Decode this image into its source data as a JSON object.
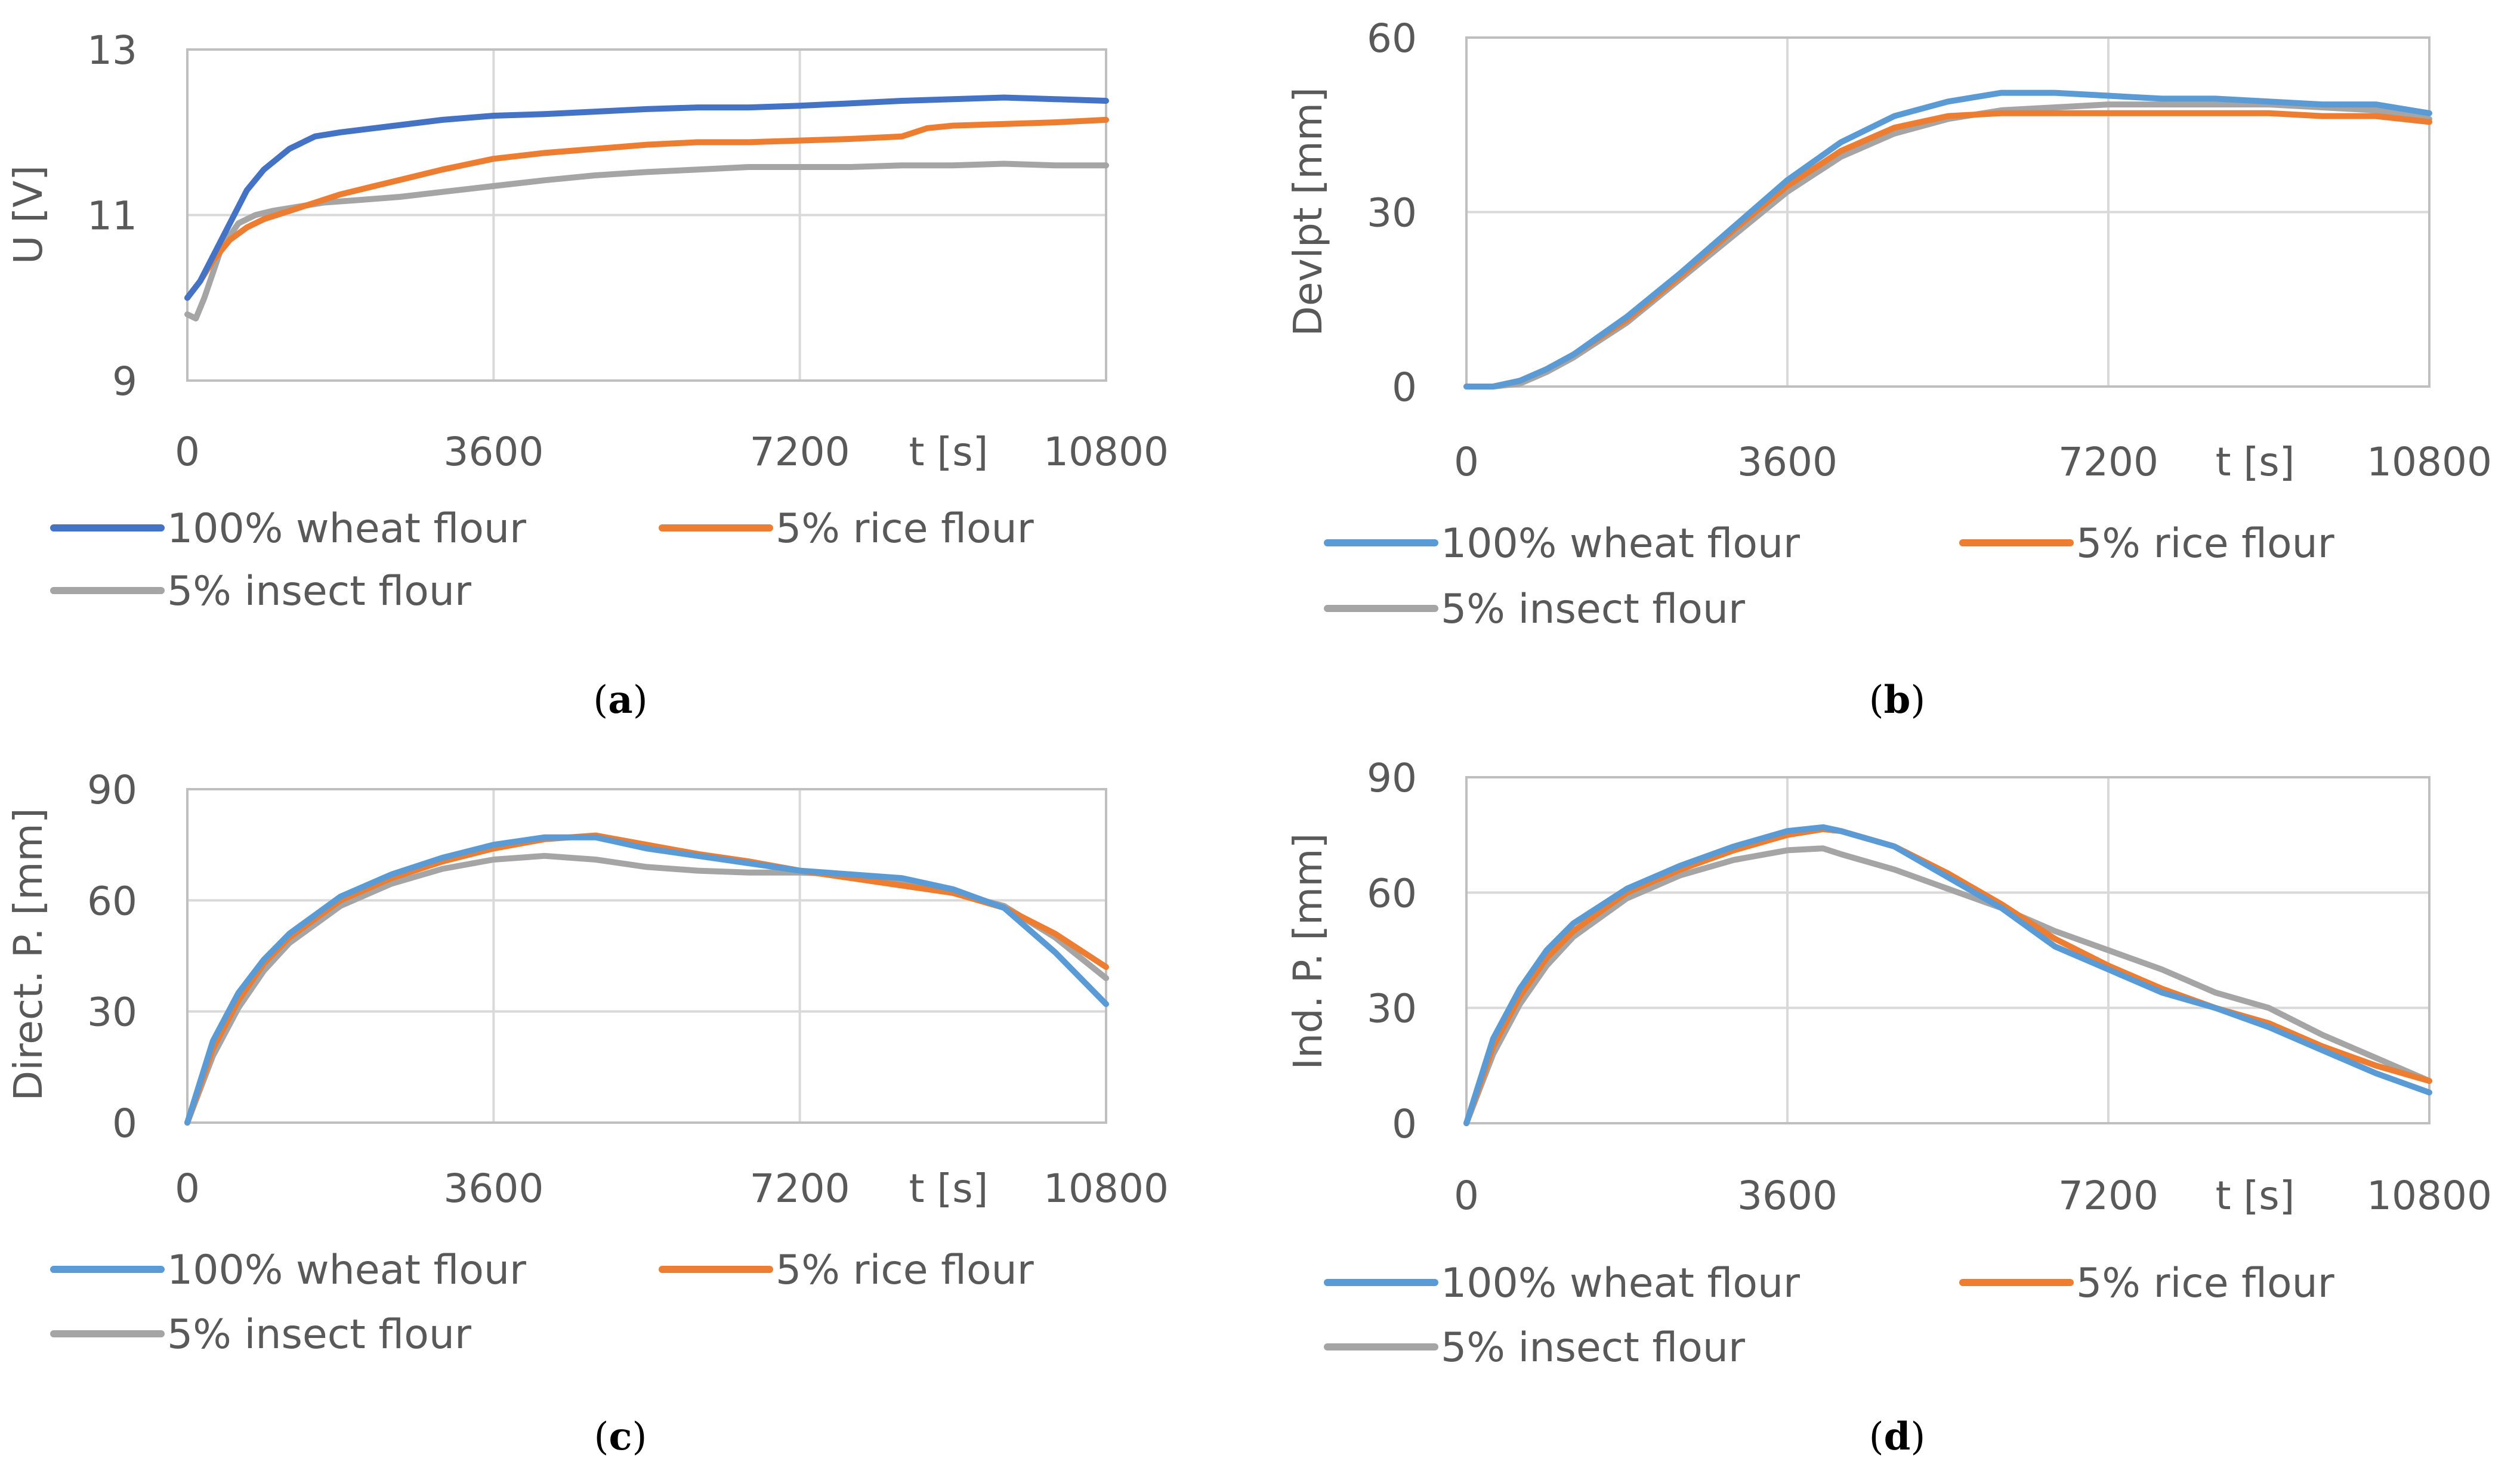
{
  "chart_data": [
    {
      "panel": "a",
      "type": "line",
      "panel_label": "a",
      "ylabel": "U [V]",
      "xlabel": "t [s]",
      "xlim": [
        0,
        10800
      ],
      "ylim": [
        9,
        13
      ],
      "x_ticks": [
        0,
        3600,
        7200,
        10800
      ],
      "y_ticks": [
        9,
        11,
        13
      ],
      "x_tick_labels": [
        "0",
        "3600",
        "7200",
        "10800"
      ],
      "y_tick_labels": [
        "9",
        "11",
        "13"
      ],
      "legend_position": "bottom",
      "series": [
        {
          "name": "100% wheat flour",
          "color": "#4472c4",
          "x": [
            0,
            150,
            300,
            500,
            700,
            900,
            1200,
            1500,
            1800,
            2200,
            2600,
            3000,
            3600,
            4200,
            4800,
            5400,
            6000,
            6600,
            7200,
            7800,
            8400,
            9000,
            9600,
            10200,
            10800
          ],
          "y": [
            10.0,
            10.2,
            10.5,
            10.9,
            11.3,
            11.55,
            11.8,
            11.95,
            12.0,
            12.05,
            12.1,
            12.15,
            12.2,
            12.22,
            12.25,
            12.28,
            12.3,
            12.3,
            12.32,
            12.35,
            12.38,
            12.4,
            12.42,
            12.4,
            12.38
          ]
        },
        {
          "name": "5% rice flour",
          "color": "#ed7d31",
          "x": [
            0,
            150,
            300,
            500,
            700,
            900,
            1200,
            1500,
            1800,
            2200,
            2600,
            3000,
            3600,
            4200,
            4800,
            5400,
            6000,
            6600,
            7200,
            7800,
            8400,
            8700,
            9000,
            9600,
            10200,
            10800
          ],
          "y": [
            10.0,
            10.2,
            10.45,
            10.7,
            10.85,
            10.95,
            11.05,
            11.15,
            11.25,
            11.35,
            11.45,
            11.55,
            11.68,
            11.75,
            11.8,
            11.85,
            11.88,
            11.88,
            11.9,
            11.92,
            11.95,
            12.05,
            12.08,
            12.1,
            12.12,
            12.15
          ]
        },
        {
          "name": "5% insect flour",
          "color": "#a5a5a5",
          "x": [
            0,
            100,
            200,
            400,
            600,
            800,
            1000,
            1300,
            1600,
            2000,
            2500,
            3000,
            3600,
            4200,
            4800,
            5400,
            6000,
            6600,
            7200,
            7800,
            8400,
            9000,
            9600,
            10200,
            10800
          ],
          "y": [
            9.8,
            9.75,
            10.0,
            10.6,
            10.9,
            11.0,
            11.05,
            11.1,
            11.15,
            11.18,
            11.22,
            11.28,
            11.35,
            11.42,
            11.48,
            11.52,
            11.55,
            11.58,
            11.58,
            11.58,
            11.6,
            11.6,
            11.62,
            11.6,
            11.6
          ]
        }
      ]
    },
    {
      "panel": "b",
      "type": "line",
      "panel_label": "b",
      "ylabel": "Devlpt [mm]",
      "xlabel": "t [s]",
      "xlim": [
        0,
        10800
      ],
      "ylim": [
        0,
        60
      ],
      "x_ticks": [
        0,
        3600,
        7200,
        10800
      ],
      "y_ticks": [
        0,
        30,
        60
      ],
      "x_tick_labels": [
        "0",
        "3600",
        "7200",
        "10800"
      ],
      "y_tick_labels": [
        "0",
        "30",
        "60"
      ],
      "legend_position": "bottom",
      "series": [
        {
          "name": "100% wheat flour",
          "color": "#5b9bd5",
          "x": [
            0,
            300,
            600,
            900,
            1200,
            1800,
            2400,
            3000,
            3600,
            4200,
            4800,
            5400,
            6000,
            6600,
            7200,
            7800,
            8400,
            9000,
            9600,
            10200,
            10800
          ],
          "y": [
            0,
            0,
            1,
            3,
            5.5,
            12,
            19.5,
            27.5,
            35.5,
            42,
            46.5,
            49,
            50.5,
            50.5,
            50,
            49.5,
            49.5,
            49,
            48.5,
            48.5,
            47
          ]
        },
        {
          "name": "5% rice flour",
          "color": "#ed7d31",
          "x": [
            0,
            300,
            600,
            900,
            1200,
            1800,
            2400,
            3000,
            3600,
            4200,
            4800,
            5400,
            6000,
            6600,
            7200,
            7800,
            8400,
            9000,
            9600,
            10200,
            10800
          ],
          "y": [
            0,
            0,
            1,
            3,
            5.5,
            11.5,
            19,
            27,
            34.5,
            40.5,
            44.5,
            46.5,
            47,
            47,
            47,
            47,
            47,
            47,
            46.5,
            46.5,
            45.5
          ]
        },
        {
          "name": "5% insect flour",
          "color": "#a5a5a5",
          "x": [
            0,
            300,
            600,
            900,
            1200,
            1800,
            2400,
            3000,
            3600,
            4200,
            4800,
            5400,
            6000,
            6600,
            7200,
            7800,
            8400,
            9000,
            9600,
            10200,
            10800
          ],
          "y": [
            0,
            0,
            0.5,
            2.5,
            5,
            11,
            18.5,
            26,
            33.5,
            39.5,
            43.5,
            46,
            47.5,
            48,
            48.5,
            48.5,
            48.5,
            48.5,
            48,
            47.5,
            46
          ]
        }
      ]
    },
    {
      "panel": "c",
      "type": "line",
      "panel_label": "c",
      "ylabel": "Direct. P. [mm]",
      "xlabel": "t [s]",
      "xlim": [
        0,
        10800
      ],
      "ylim": [
        0,
        90
      ],
      "x_ticks": [
        0,
        3600,
        7200,
        10800
      ],
      "y_ticks": [
        0,
        30,
        60,
        90
      ],
      "x_tick_labels": [
        "0",
        "3600",
        "7200",
        "10800"
      ],
      "y_tick_labels": [
        "0",
        "30",
        "60",
        "90"
      ],
      "legend_position": "bottom",
      "series": [
        {
          "name": "100% wheat flour",
          "color": "#5b9bd5",
          "x": [
            0,
            300,
            600,
            900,
            1200,
            1800,
            2400,
            3000,
            3600,
            4200,
            4800,
            5400,
            6000,
            6600,
            7200,
            7800,
            8400,
            9000,
            9600,
            10200,
            10800
          ],
          "y": [
            0,
            22,
            35,
            44,
            51,
            61,
            67,
            71.5,
            75,
            77,
            77,
            74,
            72,
            70,
            68,
            67,
            66,
            63,
            58,
            46,
            32
          ]
        },
        {
          "name": "5% rice flour",
          "color": "#ed7d31",
          "x": [
            0,
            300,
            600,
            900,
            1200,
            1800,
            2400,
            3000,
            3600,
            4200,
            4800,
            5400,
            6000,
            6600,
            7200,
            7800,
            8400,
            9000,
            9600,
            10200,
            10800
          ],
          "y": [
            0,
            20,
            33,
            43,
            50,
            60,
            66,
            70.5,
            74,
            76.5,
            77.5,
            75,
            72.5,
            70.5,
            68,
            66,
            64,
            62,
            58,
            51,
            42
          ]
        },
        {
          "name": "5% insect flour",
          "color": "#a5a5a5",
          "x": [
            0,
            300,
            600,
            900,
            1200,
            1800,
            2400,
            3000,
            3600,
            4200,
            4800,
            5400,
            6000,
            6600,
            7200,
            7800,
            8400,
            9000,
            9600,
            10200,
            10800
          ],
          "y": [
            0,
            18,
            31,
            41,
            48.5,
            58.5,
            64.5,
            68.5,
            71,
            72,
            71,
            69,
            68,
            67.5,
            67.5,
            67,
            65,
            62,
            58.5,
            50,
            39
          ]
        }
      ]
    },
    {
      "panel": "d",
      "type": "line",
      "panel_label": "d",
      "ylabel": "Ind. P. [mm]",
      "xlabel": "t [s]",
      "xlim": [
        0,
        10800
      ],
      "ylim": [
        0,
        90
      ],
      "x_ticks": [
        0,
        3600,
        7200,
        10800
      ],
      "y_ticks": [
        0,
        30,
        60,
        90
      ],
      "x_tick_labels": [
        "0",
        "3600",
        "7200",
        "10800"
      ],
      "y_tick_labels": [
        "0",
        "30",
        "60",
        "90"
      ],
      "legend_position": "bottom",
      "series": [
        {
          "name": "100% wheat flour",
          "color": "#5b9bd5",
          "x": [
            0,
            300,
            600,
            900,
            1200,
            1800,
            2400,
            3000,
            3600,
            4000,
            4200,
            4800,
            5400,
            6000,
            6600,
            7200,
            7800,
            8400,
            9000,
            9600,
            10200,
            10800
          ],
          "y": [
            0,
            22,
            35,
            45,
            52,
            61,
            67,
            72,
            76,
            77,
            76,
            72,
            64,
            56,
            46,
            40,
            34,
            30,
            25,
            19,
            13,
            8
          ]
        },
        {
          "name": "5% rice flour",
          "color": "#ed7d31",
          "x": [
            0,
            300,
            600,
            900,
            1200,
            1800,
            2400,
            3000,
            3600,
            4000,
            4200,
            4800,
            5400,
            6000,
            6600,
            7200,
            7800,
            8400,
            9000,
            9600,
            10200,
            10800
          ],
          "y": [
            0,
            20,
            33,
            43,
            50,
            60,
            66,
            71,
            75,
            76.5,
            76,
            72,
            65,
            57,
            48,
            41,
            35,
            30,
            26,
            20,
            15,
            11
          ]
        },
        {
          "name": "5% insect flour",
          "color": "#a5a5a5",
          "x": [
            0,
            300,
            600,
            900,
            1200,
            1800,
            2400,
            3000,
            3600,
            4000,
            4200,
            4800,
            5400,
            6000,
            6600,
            7200,
            7800,
            8400,
            9000,
            9600,
            10200,
            10800
          ],
          "y": [
            0,
            18,
            31,
            41,
            48.5,
            58.5,
            64.5,
            68.5,
            71,
            71.5,
            70,
            66,
            61,
            56,
            50,
            45,
            40,
            34,
            30,
            23,
            17,
            11
          ]
        }
      ]
    }
  ]
}
